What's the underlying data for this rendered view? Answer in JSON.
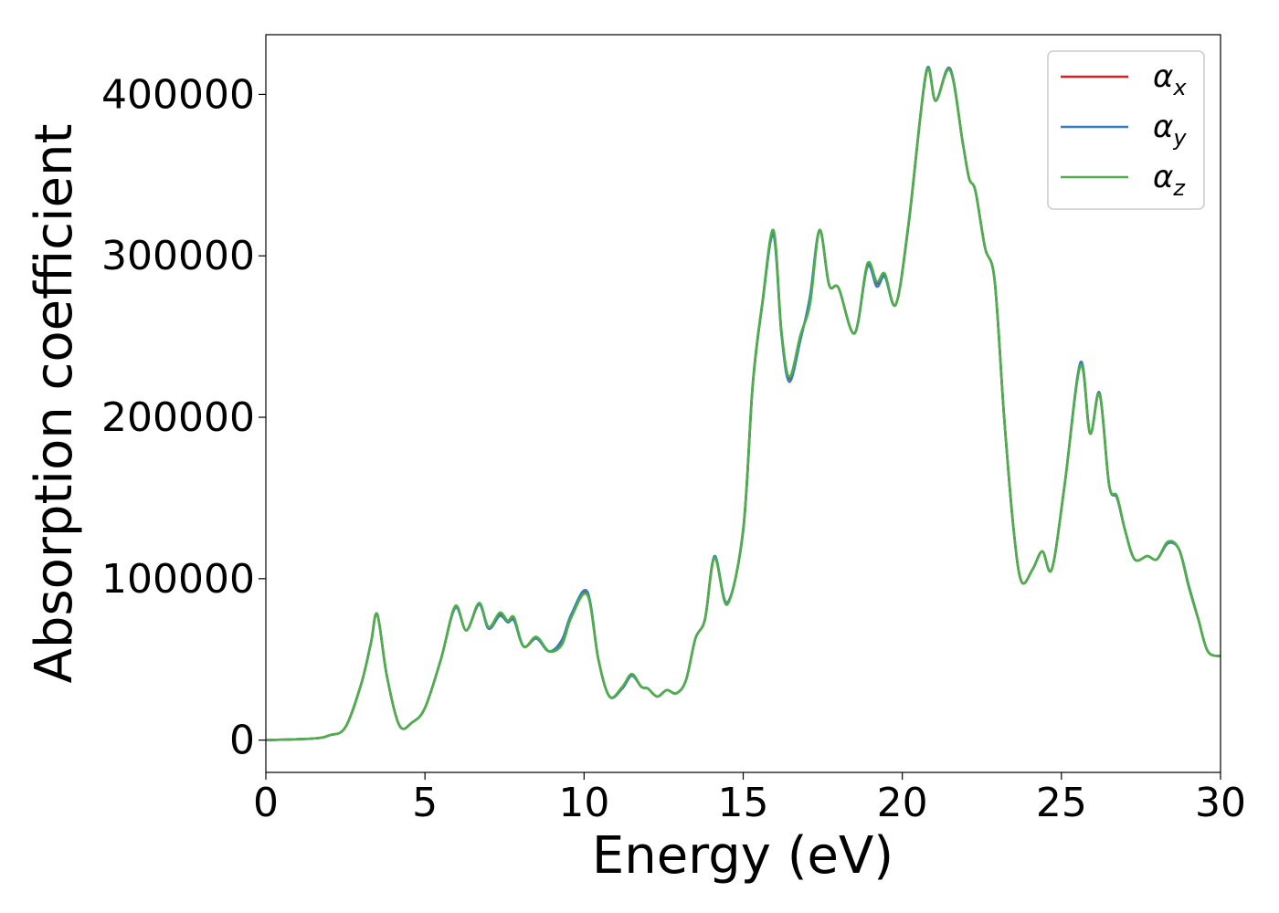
{
  "chart_data": {
    "type": "line",
    "title": "",
    "xlabel": "Energy (eV)",
    "ylabel": "Absorption coefficient",
    "xlim": [
      0,
      30
    ],
    "ylim": [
      -20000,
      437000
    ],
    "xticks": [
      0,
      5,
      10,
      15,
      20,
      25,
      30
    ],
    "yticks": [
      0,
      100000,
      200000,
      300000,
      400000
    ],
    "xtick_labels": [
      "0",
      "5",
      "10",
      "15",
      "20",
      "25",
      "30"
    ],
    "ytick_labels": [
      "0",
      "100000",
      "200000",
      "300000",
      "400000"
    ],
    "grid": false,
    "legend_position": "top-right",
    "series": [
      {
        "name": "αx",
        "symbol": "α",
        "subscript": "x",
        "color": "#e41a1c",
        "x": [
          0,
          1.5,
          2.0,
          2.5,
          3.0,
          3.3,
          3.5,
          3.8,
          4.2,
          4.6,
          5.0,
          5.5,
          5.95,
          6.3,
          6.7,
          7.0,
          7.35,
          7.6,
          7.8,
          8.1,
          8.5,
          8.9,
          9.3,
          9.6,
          10.1,
          10.45,
          10.8,
          11.2,
          11.5,
          11.8,
          12.0,
          12.3,
          12.6,
          12.9,
          13.2,
          13.5,
          13.8,
          14.1,
          14.5,
          15.0,
          15.3,
          15.6,
          15.95,
          16.2,
          16.45,
          16.8,
          17.1,
          17.4,
          17.7,
          18.0,
          18.5,
          18.9,
          19.2,
          19.45,
          19.8,
          20.2,
          20.75,
          21.05,
          21.5,
          21.9,
          22.1,
          22.3,
          22.6,
          22.9,
          23.2,
          23.5,
          23.75,
          24.1,
          24.4,
          24.7,
          25.1,
          25.6,
          25.9,
          26.2,
          26.5,
          26.75,
          27.0,
          27.3,
          27.7,
          28.0,
          28.35,
          28.7,
          29.0,
          29.3,
          29.6,
          30.0
        ],
        "y": [
          0,
          1000,
          3000,
          8000,
          35000,
          60000,
          78000,
          40000,
          9000,
          11000,
          20000,
          50000,
          82000,
          68000,
          84000,
          70000,
          78000,
          74000,
          75000,
          58000,
          63000,
          55000,
          60000,
          77000,
          91000,
          50000,
          27000,
          32000,
          40000,
          33000,
          32000,
          27000,
          31000,
          29000,
          37000,
          63000,
          75000,
          113000,
          85000,
          130000,
          220000,
          270000,
          315000,
          253000,
          224000,
          250000,
          272000,
          316000,
          282000,
          280000,
          252000,
          294000,
          283000,
          288000,
          270000,
          320000,
          413000,
          396000,
          416000,
          370000,
          348000,
          340000,
          305000,
          285000,
          200000,
          130000,
          98000,
          106000,
          117000,
          106000,
          158000,
          233000,
          190000,
          215000,
          158000,
          150000,
          130000,
          112000,
          114000,
          112000,
          122000,
          118000,
          95000,
          75000,
          55000,
          52000
        ]
      },
      {
        "name": "αy",
        "symbol": "α",
        "subscript": "y",
        "color": "#377eb8",
        "x": [
          0,
          1.5,
          2.0,
          2.5,
          3.0,
          3.3,
          3.5,
          3.8,
          4.2,
          4.6,
          5.0,
          5.5,
          5.95,
          6.3,
          6.7,
          7.0,
          7.35,
          7.6,
          7.8,
          8.1,
          8.5,
          8.9,
          9.3,
          9.6,
          10.1,
          10.45,
          10.8,
          11.2,
          11.5,
          11.8,
          12.0,
          12.3,
          12.6,
          12.9,
          13.2,
          13.5,
          13.8,
          14.1,
          14.5,
          15.0,
          15.3,
          15.6,
          15.95,
          16.2,
          16.45,
          16.8,
          17.1,
          17.4,
          17.7,
          18.0,
          18.5,
          18.9,
          19.2,
          19.45,
          19.8,
          20.2,
          20.75,
          21.05,
          21.5,
          21.9,
          22.1,
          22.3,
          22.6,
          22.9,
          23.2,
          23.5,
          23.75,
          24.1,
          24.4,
          24.7,
          25.1,
          25.6,
          25.9,
          26.2,
          26.5,
          26.75,
          27.0,
          27.3,
          27.7,
          28.0,
          28.35,
          28.7,
          29.0,
          29.3,
          29.6,
          30.0
        ],
        "y": [
          0,
          1000,
          3000,
          8000,
          35000,
          60000,
          78000,
          40000,
          9000,
          11000,
          20000,
          50000,
          82000,
          68000,
          84000,
          69000,
          77000,
          73000,
          74000,
          58000,
          63000,
          55000,
          62000,
          78000,
          92000,
          50000,
          27000,
          32000,
          40000,
          33000,
          32000,
          27000,
          31000,
          29000,
          37000,
          63000,
          75000,
          114000,
          85000,
          130000,
          220000,
          270000,
          313000,
          252000,
          222000,
          248000,
          275000,
          316000,
          282000,
          280000,
          252000,
          293000,
          281000,
          287000,
          270000,
          320000,
          414000,
          396000,
          416000,
          370000,
          348000,
          340000,
          305000,
          285000,
          200000,
          130000,
          98000,
          106000,
          117000,
          106000,
          158000,
          234000,
          190000,
          215000,
          158000,
          150000,
          130000,
          112000,
          114000,
          112000,
          122000,
          118000,
          96000,
          75000,
          55000,
          52000
        ]
      },
      {
        "name": "αz",
        "symbol": "α",
        "subscript": "z",
        "color": "#4daf4a",
        "x": [
          0,
          1.5,
          2.0,
          2.5,
          3.0,
          3.3,
          3.5,
          3.8,
          4.2,
          4.6,
          5.0,
          5.5,
          5.95,
          6.3,
          6.7,
          7.0,
          7.35,
          7.6,
          7.8,
          8.1,
          8.5,
          8.9,
          9.3,
          9.6,
          10.1,
          10.45,
          10.8,
          11.2,
          11.5,
          11.8,
          12.0,
          12.3,
          12.6,
          12.9,
          13.2,
          13.5,
          13.8,
          14.1,
          14.5,
          15.0,
          15.3,
          15.6,
          15.95,
          16.2,
          16.45,
          16.8,
          17.1,
          17.4,
          17.7,
          18.0,
          18.5,
          18.9,
          19.2,
          19.45,
          19.8,
          20.2,
          20.75,
          21.05,
          21.5,
          21.9,
          22.1,
          22.3,
          22.6,
          22.9,
          23.2,
          23.5,
          23.75,
          24.1,
          24.4,
          24.7,
          25.1,
          25.6,
          25.9,
          26.2,
          26.5,
          26.75,
          27.0,
          27.3,
          27.7,
          28.0,
          28.35,
          28.7,
          29.0,
          29.3,
          29.6,
          30.0
        ],
        "y": [
          0,
          1000,
          3000,
          8000,
          35000,
          60000,
          78000,
          40000,
          9000,
          11000,
          20000,
          50000,
          83000,
          68000,
          85000,
          70000,
          79000,
          74000,
          76000,
          58000,
          64000,
          55000,
          59000,
          76000,
          90000,
          50000,
          27000,
          33000,
          41000,
          33000,
          32000,
          27000,
          31000,
          29000,
          37000,
          63000,
          75000,
          113000,
          84000,
          131000,
          221000,
          271000,
          316000,
          254000,
          225000,
          251000,
          270000,
          316000,
          282000,
          280000,
          252000,
          295000,
          284000,
          289000,
          270000,
          321000,
          413000,
          396000,
          415000,
          370000,
          348000,
          340000,
          305000,
          285000,
          200000,
          130000,
          98000,
          106000,
          117000,
          106000,
          158000,
          232000,
          190000,
          214000,
          158000,
          151000,
          130000,
          112000,
          114000,
          112000,
          123000,
          118000,
          95000,
          75000,
          55000,
          52000
        ]
      }
    ]
  }
}
